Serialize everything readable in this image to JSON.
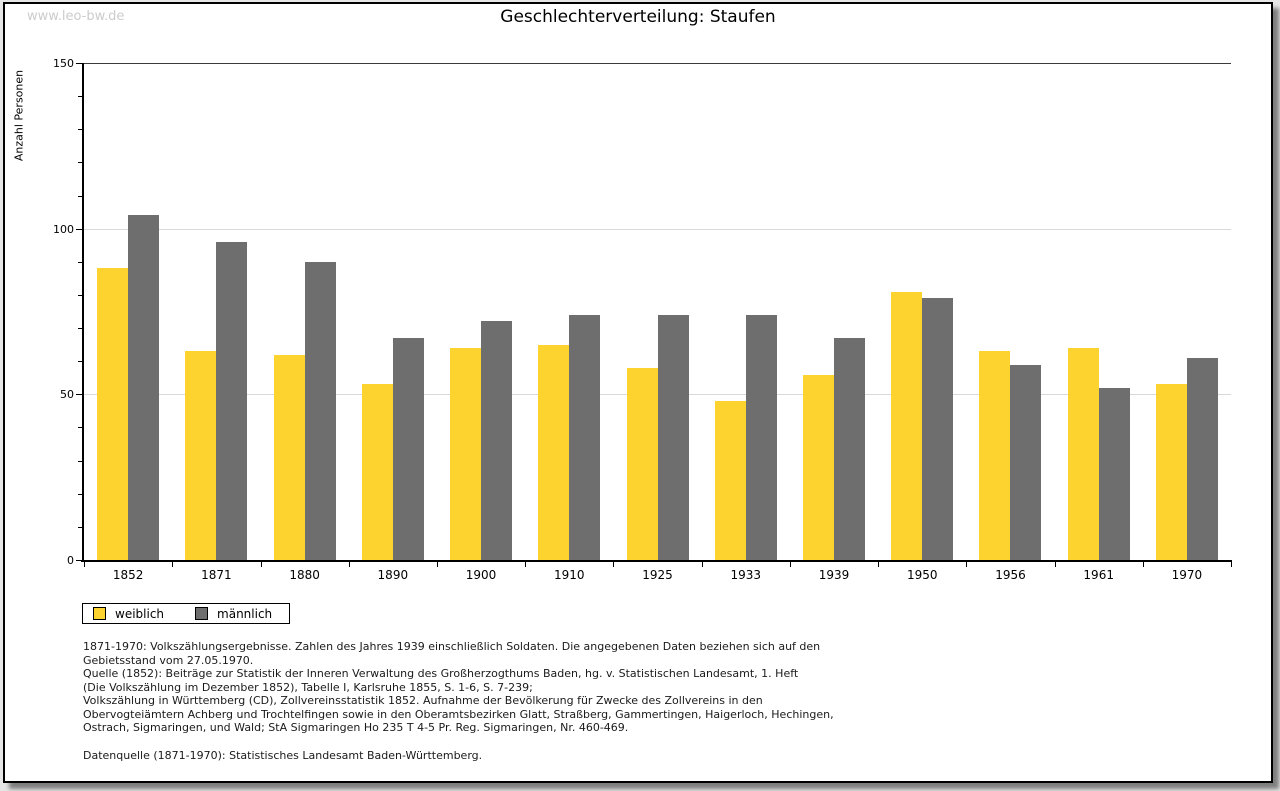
{
  "watermark": "www.leo-bw.de",
  "title": "Geschlechterverteilung: Staufen",
  "y_axis_label": "Anzahl Personen",
  "colors": {
    "weiblich": "#fcd32f",
    "maennlich": "#6e6e6e",
    "gridline": "#d9d9d9",
    "watermark": "#cccccc"
  },
  "legend": {
    "weiblich_label": "weiblich",
    "maennlich_label": "männlich"
  },
  "chart_data": {
    "type": "bar",
    "title": "Geschlechterverteilung: Staufen",
    "xlabel": "",
    "ylabel": "Anzahl Personen",
    "ylim": [
      0,
      150
    ],
    "y_major_ticks": [
      0,
      50,
      100,
      150
    ],
    "y_minor_tick_step": 10,
    "grid": true,
    "legend_position": "bottom-left",
    "categories": [
      "1852",
      "1871",
      "1880",
      "1890",
      "1900",
      "1910",
      "1925",
      "1933",
      "1939",
      "1950",
      "1956",
      "1961",
      "1970"
    ],
    "series": [
      {
        "name": "weiblich",
        "color": "#fcd32f",
        "values": [
          88,
          63,
          62,
          53,
          64,
          65,
          58,
          48,
          56,
          81,
          63,
          64,
          53
        ]
      },
      {
        "name": "männlich",
        "color": "#6e6e6e",
        "values": [
          104,
          96,
          90,
          67,
          72,
          74,
          74,
          74,
          67,
          79,
          59,
          52,
          61
        ]
      }
    ]
  },
  "footnotes": {
    "lines": [
      "1871-1970: Volkszählungsergebnisse. Zahlen des Jahres 1939 einschließlich Soldaten. Die angegebenen Daten beziehen sich auf den",
      "Gebietsstand vom 27.05.1970.",
      "Quelle (1852): Beiträge zur Statistik der Inneren Verwaltung des Großherzogthums Baden, hg. v. Statistischen Landesamt, 1. Heft",
      "(Die Volkszählung im Dezember 1852), Tabelle I, Karlsruhe 1855, S. 1-6, S. 7-239;",
      "Volkszählung in Württemberg (CD), Zollvereinsstatistik 1852. Aufnahme der Bevölkerung für Zwecke des Zollvereins in den",
      "Obervogteiämtern Achberg und Trochtelfingen sowie in den Oberamtsbezirken Glatt, Straßberg, Gammertingen, Haigerloch, Hechingen,",
      "Ostrach, Sigmaringen, und Wald; StA Sigmaringen Ho 235 T 4-5 Pr. Reg. Sigmaringen, Nr. 460-469."
    ],
    "datasource": "Datenquelle (1871-1970): Statistisches Landesamt Baden-Württemberg."
  }
}
